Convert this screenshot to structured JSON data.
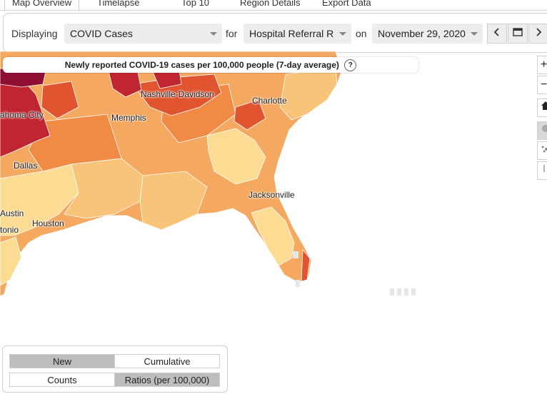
{
  "tabs": [
    "Map Overview",
    "Timelapse",
    "Top 10",
    "Region Details",
    "Export Data"
  ],
  "controls": {
    "displaying_label": "Displaying",
    "metric_value": "COVID Cases",
    "for_label": "for",
    "region_value": "Hospital Referral R",
    "on_label": "on",
    "date_value": "November 29, 2020"
  },
  "map": {
    "title": "Newly reported COVID-19 cases per 100,000 people (7-day average)",
    "help": "?",
    "cities": [
      "Nashville-Davidson",
      "Charlotte",
      "ahoma City",
      "Memphis",
      "Dallas",
      "Jacksonville",
      "Austin",
      "Houston",
      "tonio"
    ],
    "colors": {
      "deep_red": "#8f0f33",
      "red": "#c0262f",
      "red_orange": "#e05530",
      "orange": "#f08a45",
      "light_orange": "#f4a860",
      "peach": "#f8c47a",
      "pale": "#fbdc92",
      "water": "#ffffff"
    }
  },
  "map_tools": {
    "zoom_in": "+",
    "zoom_out": "−"
  },
  "toggles": {
    "new": "New",
    "cumulative": "Cumulative",
    "counts": "Counts",
    "ratios": "Ratios (per 100,000)"
  }
}
